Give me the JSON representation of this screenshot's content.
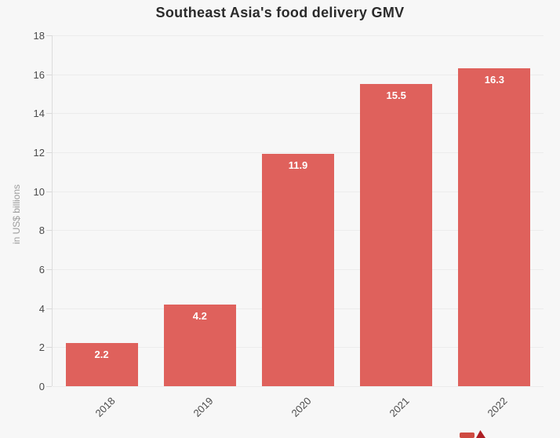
{
  "title": "Southeast Asia's food delivery GMV",
  "chart_data": {
    "type": "bar",
    "title": "Southeast Asia's food delivery GMV",
    "categories": [
      "2018",
      "2019",
      "2020",
      "2021",
      "2022"
    ],
    "values": [
      2.2,
      4.2,
      11.9,
      15.5,
      16.3
    ],
    "value_labels": [
      "2.2",
      "4.2",
      "11.9",
      "15.5",
      "16.3"
    ],
    "xlabel": "",
    "ylabel": "in US$ billions",
    "ylim": [
      0,
      18
    ],
    "yticks": [
      0,
      2,
      4,
      6,
      8,
      10,
      12,
      14,
      16,
      18
    ],
    "grid": true,
    "legend": false,
    "bar_color": "#df615c",
    "bar_label_color": "#ffffff",
    "background_color": "#f7f7f7",
    "gridline_color": "#ececec",
    "axis_line_color": "#dcdcdc",
    "title_color": "#2b2b2b",
    "tick_label_color": "#4a4a4a",
    "axis_title_color": "#9b9b9b"
  },
  "branding": {
    "logo_note": "partial red logo mark clipped at bottom edge"
  }
}
